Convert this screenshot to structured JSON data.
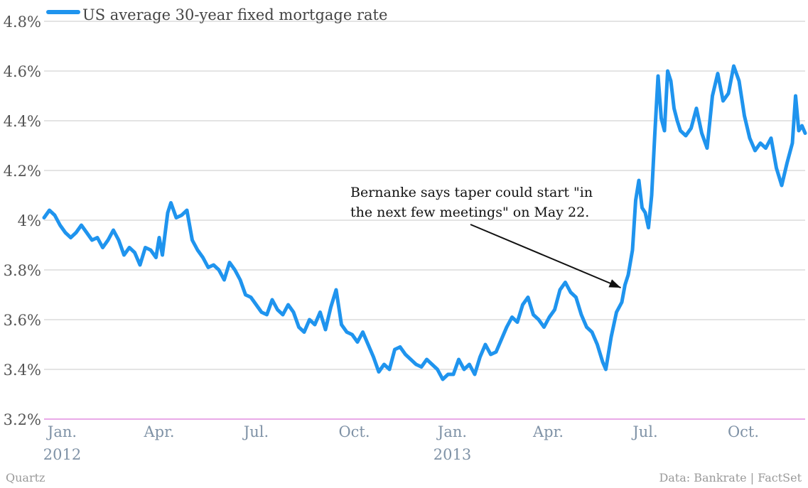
{
  "chart_data": {
    "type": "line",
    "legend": "US average 30-year fixed mortgage rate",
    "series": [
      {
        "name": "US average 30-year fixed mortgage rate",
        "color": "#1f94ee",
        "points": [
          [
            "2011-12-15",
            4.01
          ],
          [
            "2011-12-20",
            4.04
          ],
          [
            "2011-12-25",
            4.02
          ],
          [
            "2011-12-30",
            3.98
          ],
          [
            "2012-01-04",
            3.95
          ],
          [
            "2012-01-09",
            3.93
          ],
          [
            "2012-01-14",
            3.95
          ],
          [
            "2012-01-19",
            3.98
          ],
          [
            "2012-01-24",
            3.95
          ],
          [
            "2012-01-29",
            3.92
          ],
          [
            "2012-02-03",
            3.93
          ],
          [
            "2012-02-08",
            3.89
          ],
          [
            "2012-02-13",
            3.92
          ],
          [
            "2012-02-18",
            3.96
          ],
          [
            "2012-02-23",
            3.92
          ],
          [
            "2012-02-28",
            3.86
          ],
          [
            "2012-03-04",
            3.89
          ],
          [
            "2012-03-09",
            3.87
          ],
          [
            "2012-03-14",
            3.82
          ],
          [
            "2012-03-19",
            3.89
          ],
          [
            "2012-03-24",
            3.88
          ],
          [
            "2012-03-29",
            3.85
          ],
          [
            "2012-04-01",
            3.93
          ],
          [
            "2012-04-04",
            3.86
          ],
          [
            "2012-04-09",
            4.03
          ],
          [
            "2012-04-12",
            4.07
          ],
          [
            "2012-04-17",
            4.01
          ],
          [
            "2012-04-22",
            4.02
          ],
          [
            "2012-04-27",
            4.04
          ],
          [
            "2012-05-02",
            3.92
          ],
          [
            "2012-05-07",
            3.88
          ],
          [
            "2012-05-12",
            3.85
          ],
          [
            "2012-05-17",
            3.81
          ],
          [
            "2012-05-22",
            3.82
          ],
          [
            "2012-05-27",
            3.8
          ],
          [
            "2012-06-01",
            3.76
          ],
          [
            "2012-06-06",
            3.83
          ],
          [
            "2012-06-11",
            3.8
          ],
          [
            "2012-06-16",
            3.76
          ],
          [
            "2012-06-21",
            3.7
          ],
          [
            "2012-06-26",
            3.69
          ],
          [
            "2012-07-01",
            3.66
          ],
          [
            "2012-07-06",
            3.63
          ],
          [
            "2012-07-11",
            3.62
          ],
          [
            "2012-07-16",
            3.68
          ],
          [
            "2012-07-21",
            3.64
          ],
          [
            "2012-07-26",
            3.62
          ],
          [
            "2012-07-31",
            3.66
          ],
          [
            "2012-08-05",
            3.63
          ],
          [
            "2012-08-10",
            3.57
          ],
          [
            "2012-08-15",
            3.55
          ],
          [
            "2012-08-20",
            3.6
          ],
          [
            "2012-08-25",
            3.58
          ],
          [
            "2012-08-30",
            3.63
          ],
          [
            "2012-09-04",
            3.56
          ],
          [
            "2012-09-09",
            3.65
          ],
          [
            "2012-09-14",
            3.72
          ],
          [
            "2012-09-19",
            3.58
          ],
          [
            "2012-09-24",
            3.55
          ],
          [
            "2012-09-29",
            3.54
          ],
          [
            "2012-10-04",
            3.51
          ],
          [
            "2012-10-09",
            3.55
          ],
          [
            "2012-10-14",
            3.5
          ],
          [
            "2012-10-19",
            3.45
          ],
          [
            "2012-10-24",
            3.39
          ],
          [
            "2012-10-29",
            3.42
          ],
          [
            "2012-11-03",
            3.4
          ],
          [
            "2012-11-08",
            3.48
          ],
          [
            "2012-11-13",
            3.49
          ],
          [
            "2012-11-18",
            3.46
          ],
          [
            "2012-11-23",
            3.44
          ],
          [
            "2012-11-28",
            3.42
          ],
          [
            "2012-12-03",
            3.41
          ],
          [
            "2012-12-08",
            3.44
          ],
          [
            "2012-12-13",
            3.42
          ],
          [
            "2012-12-18",
            3.4
          ],
          [
            "2012-12-23",
            3.36
          ],
          [
            "2012-12-28",
            3.38
          ],
          [
            "2013-01-02",
            3.38
          ],
          [
            "2013-01-07",
            3.44
          ],
          [
            "2013-01-12",
            3.4
          ],
          [
            "2013-01-17",
            3.42
          ],
          [
            "2013-01-22",
            3.38
          ],
          [
            "2013-01-27",
            3.45
          ],
          [
            "2013-02-01",
            3.5
          ],
          [
            "2013-02-06",
            3.46
          ],
          [
            "2013-02-11",
            3.47
          ],
          [
            "2013-02-16",
            3.52
          ],
          [
            "2013-02-21",
            3.57
          ],
          [
            "2013-02-26",
            3.61
          ],
          [
            "2013-03-03",
            3.59
          ],
          [
            "2013-03-08",
            3.66
          ],
          [
            "2013-03-13",
            3.69
          ],
          [
            "2013-03-18",
            3.62
          ],
          [
            "2013-03-23",
            3.6
          ],
          [
            "2013-03-28",
            3.57
          ],
          [
            "2013-04-02",
            3.61
          ],
          [
            "2013-04-07",
            3.64
          ],
          [
            "2013-04-12",
            3.72
          ],
          [
            "2013-04-17",
            3.75
          ],
          [
            "2013-04-22",
            3.71
          ],
          [
            "2013-04-27",
            3.69
          ],
          [
            "2013-05-02",
            3.62
          ],
          [
            "2013-05-07",
            3.57
          ],
          [
            "2013-05-12",
            3.55
          ],
          [
            "2013-05-17",
            3.5
          ],
          [
            "2013-05-22",
            3.43
          ],
          [
            "2013-05-25",
            3.4
          ],
          [
            "2013-05-30",
            3.53
          ],
          [
            "2013-06-04",
            3.63
          ],
          [
            "2013-06-09",
            3.67
          ],
          [
            "2013-06-12",
            3.74
          ],
          [
            "2013-06-15",
            3.78
          ],
          [
            "2013-06-19",
            3.88
          ],
          [
            "2013-06-22",
            4.08
          ],
          [
            "2013-06-25",
            4.16
          ],
          [
            "2013-06-28",
            4.05
          ],
          [
            "2013-07-01",
            4.03
          ],
          [
            "2013-07-04",
            3.97
          ],
          [
            "2013-07-07",
            4.1
          ],
          [
            "2013-07-10",
            4.35
          ],
          [
            "2013-07-13",
            4.58
          ],
          [
            "2013-07-16",
            4.41
          ],
          [
            "2013-07-19",
            4.36
          ],
          [
            "2013-07-22",
            4.6
          ],
          [
            "2013-07-25",
            4.56
          ],
          [
            "2013-07-28",
            4.45
          ],
          [
            "2013-07-31",
            4.4
          ],
          [
            "2013-08-03",
            4.36
          ],
          [
            "2013-08-08",
            4.34
          ],
          [
            "2013-08-13",
            4.37
          ],
          [
            "2013-08-18",
            4.45
          ],
          [
            "2013-08-23",
            4.35
          ],
          [
            "2013-08-28",
            4.29
          ],
          [
            "2013-09-02",
            4.5
          ],
          [
            "2013-09-07",
            4.59
          ],
          [
            "2013-09-12",
            4.48
          ],
          [
            "2013-09-17",
            4.51
          ],
          [
            "2013-09-22",
            4.62
          ],
          [
            "2013-09-27",
            4.56
          ],
          [
            "2013-10-02",
            4.42
          ],
          [
            "2013-10-07",
            4.33
          ],
          [
            "2013-10-12",
            4.28
          ],
          [
            "2013-10-17",
            4.31
          ],
          [
            "2013-10-22",
            4.29
          ],
          [
            "2013-10-27",
            4.33
          ],
          [
            "2013-11-01",
            4.21
          ],
          [
            "2013-11-06",
            4.14
          ],
          [
            "2013-11-11",
            4.23
          ],
          [
            "2013-11-16",
            4.31
          ],
          [
            "2013-11-19",
            4.5
          ],
          [
            "2013-11-22",
            4.36
          ],
          [
            "2013-11-25",
            4.38
          ],
          [
            "2013-11-28",
            4.35
          ]
        ]
      }
    ],
    "y_ticks": [
      {
        "value": 3.2,
        "label": "3.2%"
      },
      {
        "value": 3.4,
        "label": "3.4%"
      },
      {
        "value": 3.6,
        "label": "3.6%"
      },
      {
        "value": 3.8,
        "label": "3.8%"
      },
      {
        "value": 4.0,
        "label": "4%"
      },
      {
        "value": 4.2,
        "label": "4.2%"
      },
      {
        "value": 4.4,
        "label": "4.4%"
      },
      {
        "value": 4.6,
        "label": "4.6%"
      },
      {
        "value": 4.8,
        "label": "4.8%"
      }
    ],
    "x_ticks": [
      {
        "date": "2012-01-01",
        "label": "Jan.",
        "sublabel": "2012"
      },
      {
        "date": "2012-04-01",
        "label": "Apr.",
        "sublabel": ""
      },
      {
        "date": "2012-07-01",
        "label": "Jul.",
        "sublabel": ""
      },
      {
        "date": "2012-10-01",
        "label": "Oct.",
        "sublabel": ""
      },
      {
        "date": "2013-01-01",
        "label": "Jan.",
        "sublabel": "2013"
      },
      {
        "date": "2013-04-01",
        "label": "Apr.",
        "sublabel": ""
      },
      {
        "date": "2013-07-01",
        "label": "Jul.",
        "sublabel": ""
      },
      {
        "date": "2013-10-01",
        "label": "Oct.",
        "sublabel": ""
      }
    ],
    "x_range": [
      "2011-12-15",
      "2013-11-28"
    ],
    "ylim": [
      3.2,
      4.8
    ],
    "grid": "horizontal",
    "legend_position": "top-left",
    "annotation": {
      "text_lines": [
        "Bernanke says taper could start \"in",
        "the next few meetings\" on May 22."
      ],
      "target_date": "2013-06-12",
      "target_value": 3.74
    },
    "baseline_color": "#e28de0",
    "grid_color": "#c8c8c8"
  },
  "footer": {
    "source_left": "Quartz",
    "source_right": "Data: Bankrate | FactSet"
  }
}
